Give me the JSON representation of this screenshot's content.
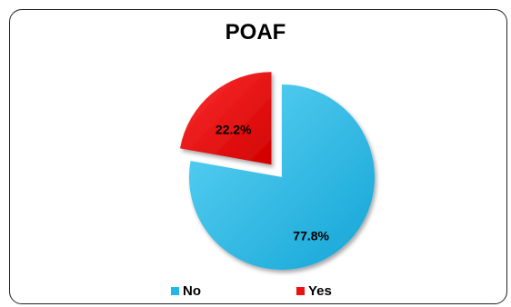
{
  "chart_data": {
    "type": "pie",
    "title": "POAF",
    "categories": [
      "No",
      "Yes"
    ],
    "values": [
      77.8,
      22.2
    ],
    "data_labels": [
      "77.8%",
      "22.2%"
    ],
    "colors": [
      "#22b8e6",
      "#ee1111"
    ],
    "exploded": [
      "Yes"
    ],
    "legend_position": "bottom"
  }
}
